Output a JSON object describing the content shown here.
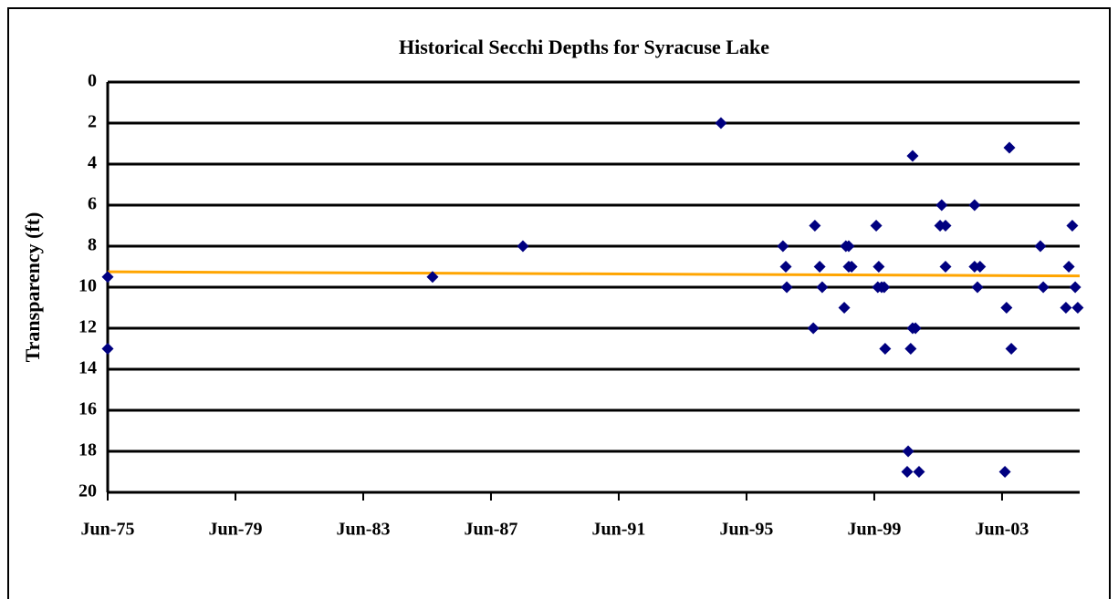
{
  "chart_data": {
    "type": "scatter",
    "title": "Historical Secchi Depths for Syracuse Lake",
    "ylabel": "Transparency (ft)",
    "y_inverted": true,
    "grid": true,
    "xlim": [
      1975.42,
      2005.85
    ],
    "xticks": [
      {
        "value": 1975.42,
        "label": "Jun-75"
      },
      {
        "value": 1979.42,
        "label": "Jun-79"
      },
      {
        "value": 1983.42,
        "label": "Jun-83"
      },
      {
        "value": 1987.42,
        "label": "Jun-87"
      },
      {
        "value": 1991.42,
        "label": "Jun-91"
      },
      {
        "value": 1995.42,
        "label": "Jun-95"
      },
      {
        "value": 1999.42,
        "label": "Jun-99"
      },
      {
        "value": 2003.42,
        "label": "Jun-03"
      }
    ],
    "ylim": [
      0,
      20
    ],
    "yticks": [
      0,
      2,
      4,
      6,
      8,
      10,
      12,
      14,
      16,
      18,
      20
    ],
    "series": [
      {
        "color": "#000080",
        "x": [
          1975.42,
          1975.42,
          1985.59,
          1988.42,
          1994.62,
          1996.56,
          1996.65,
          1996.68,
          1997.56,
          1997.51,
          1997.71,
          1997.79,
          1998.48,
          1998.53,
          1998.62,
          1998.62,
          1998.71,
          1999.48,
          1999.56,
          1999.53,
          1999.65,
          1999.73,
          1999.76,
          2000.48,
          2000.45,
          2000.62,
          2000.56,
          2000.62,
          2000.71,
          2000.82,
          2001.53,
          2001.48,
          2001.65,
          2001.65,
          2002.56,
          2002.56,
          2002.73,
          2002.65,
          2003.65,
          2003.56,
          2003.71,
          2003.51,
          2004.62,
          2004.71,
          2005.42,
          2005.51,
          2005.62,
          2005.71,
          2005.79
        ],
        "values": [
          9.5,
          13,
          9.5,
          8,
          2,
          8,
          9,
          10,
          7,
          12,
          9,
          10,
          11,
          8,
          8,
          9,
          9,
          7,
          9,
          10,
          10,
          10,
          13,
          18,
          19,
          3.6,
          13,
          12,
          12,
          19,
          6,
          7,
          7,
          9,
          6,
          9,
          9,
          10,
          3.2,
          11,
          13,
          19,
          8,
          10,
          11,
          9,
          7,
          10,
          11
        ]
      }
    ],
    "trendline": {
      "color": "#ffa500",
      "x": [
        1975.42,
        2005.85
      ],
      "values": [
        9.25,
        9.45
      ]
    }
  }
}
